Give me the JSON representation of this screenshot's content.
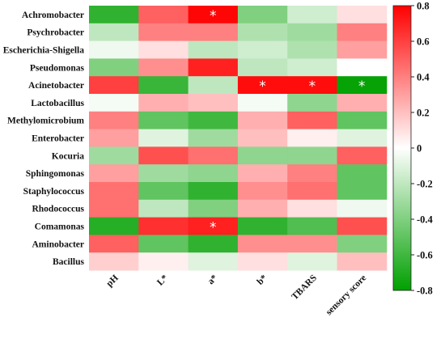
{
  "chart_data": {
    "type": "heatmap",
    "rows": [
      "Achromobacter",
      "Psychrobacter",
      "Escherichia-Shigella",
      "Pseudomonas",
      "Acinetobacter",
      "Lactobacillus",
      "Methylomicrobium",
      "Enterobacter",
      "Kocuria",
      "Sphingomonas",
      "Staphylococcus",
      "Rhodococcus",
      "Comamonas",
      "Aminobacter",
      "Bacillus"
    ],
    "columns": [
      "pH",
      "L*",
      "a*",
      "b*",
      "TBARS",
      "sensory score"
    ],
    "values": [
      [
        -0.65,
        0.5,
        0.78,
        -0.4,
        -0.15,
        0.1
      ],
      [
        -0.2,
        0.4,
        0.4,
        -0.25,
        -0.3,
        0.4
      ],
      [
        -0.05,
        0.1,
        -0.2,
        -0.15,
        -0.25,
        0.3
      ],
      [
        -0.4,
        0.35,
        0.7,
        -0.2,
        -0.15,
        0.0
      ],
      [
        0.6,
        -0.62,
        -0.2,
        0.76,
        0.76,
        -0.78
      ],
      [
        -0.03,
        0.25,
        0.2,
        -0.03,
        -0.35,
        0.25
      ],
      [
        0.4,
        -0.5,
        -0.6,
        0.25,
        0.5,
        -0.5
      ],
      [
        0.3,
        -0.1,
        -0.3,
        0.2,
        0.05,
        -0.1
      ],
      [
        -0.3,
        0.55,
        0.45,
        -0.35,
        -0.35,
        0.5
      ],
      [
        0.3,
        -0.3,
        -0.35,
        0.25,
        0.4,
        -0.5
      ],
      [
        0.45,
        -0.5,
        -0.65,
        0.35,
        0.45,
        -0.5
      ],
      [
        0.45,
        -0.2,
        -0.4,
        0.25,
        0.1,
        -0.05
      ],
      [
        -0.68,
        0.65,
        0.7,
        -0.65,
        -0.55,
        0.55
      ],
      [
        0.5,
        -0.5,
        -0.65,
        0.35,
        0.35,
        -0.4
      ],
      [
        0.15,
        0.05,
        -0.1,
        0.1,
        -0.1,
        0.2
      ]
    ],
    "significant": [
      [
        0,
        2
      ],
      [
        4,
        3
      ],
      [
        4,
        4
      ],
      [
        4,
        5
      ],
      [
        12,
        2
      ]
    ],
    "significance_marker": "*",
    "colorbar": {
      "range": [
        -0.8,
        0.8
      ],
      "ticks": [
        "0.8",
        "0.6",
        "0.4",
        "0.2",
        "0",
        "-0.2",
        "-0.4",
        "-0.6",
        "-0.8"
      ],
      "colors": {
        "high": "#ff0000",
        "mid": "#ffffff",
        "low": "#00a000"
      }
    }
  }
}
